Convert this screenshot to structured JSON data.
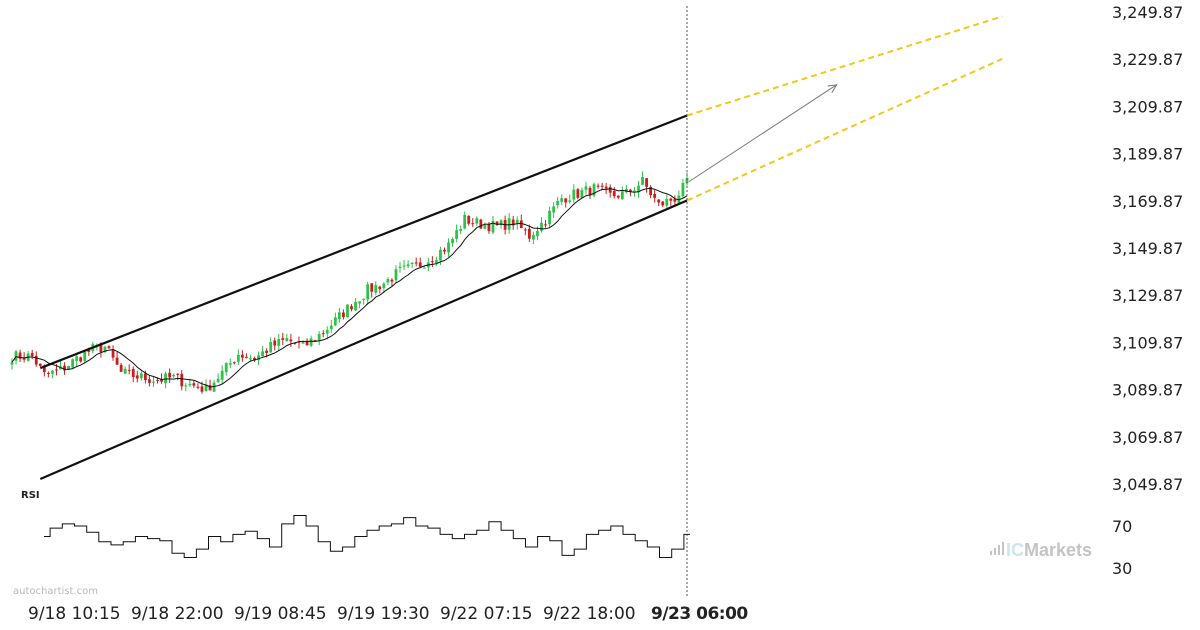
{
  "chart_data": {
    "type": "candlestick",
    "price_axis": {
      "ticks": [
        "3,249.87",
        "3,229.87",
        "3,209.87",
        "3,189.87",
        "3,169.87",
        "3,149.87",
        "3,129.87",
        "3,109.87",
        "3,089.87",
        "3,069.87",
        "3,049.87"
      ],
      "range": [
        3040,
        3252
      ]
    },
    "time_axis": {
      "ticks": [
        "9/18 10:15",
        "9/18 22:00",
        "9/19 08:45",
        "9/19 19:30",
        "9/22 07:15",
        "9/22 18:00",
        "9/23 06:00"
      ],
      "highlighted": "9/23 06:00"
    },
    "price_path": [
      [
        0,
        3104
      ],
      [
        5,
        3104
      ],
      [
        8,
        3096
      ],
      [
        12,
        3098
      ],
      [
        16,
        3103
      ],
      [
        20,
        3107
      ],
      [
        23,
        3108
      ],
      [
        27,
        3097
      ],
      [
        32,
        3095
      ],
      [
        36,
        3094
      ],
      [
        40,
        3095
      ],
      [
        44,
        3092
      ],
      [
        48,
        3090
      ],
      [
        52,
        3097
      ],
      [
        56,
        3105
      ],
      [
        60,
        3103
      ],
      [
        64,
        3108
      ],
      [
        68,
        3111
      ],
      [
        72,
        3108
      ],
      [
        76,
        3113
      ],
      [
        80,
        3119
      ],
      [
        84,
        3126
      ],
      [
        88,
        3132
      ],
      [
        92,
        3135
      ],
      [
        96,
        3140
      ],
      [
        100,
        3142
      ],
      [
        104,
        3146
      ],
      [
        108,
        3151
      ],
      [
        112,
        3162
      ],
      [
        116,
        3160
      ],
      [
        120,
        3159
      ],
      [
        124,
        3161
      ],
      [
        128,
        3155
      ],
      [
        132,
        3162
      ],
      [
        136,
        3171
      ],
      [
        140,
        3173
      ],
      [
        144,
        3175
      ],
      [
        148,
        3172
      ],
      [
        152,
        3173
      ],
      [
        156,
        3178
      ],
      [
        160,
        3168
      ],
      [
        164,
        3171
      ],
      [
        167,
        3177
      ]
    ],
    "candle_count": 168,
    "pattern_lines": {
      "upper": {
        "start": [
          7,
          3099
        ],
        "end": [
          167,
          3206
        ]
      },
      "lower": {
        "start": [
          7,
          3052
        ],
        "end": [
          167,
          3170
        ]
      },
      "projected_upper_end": [
        245,
        3248
      ],
      "projected_lower_end": [
        245,
        3230
      ],
      "arrow_start": [
        167,
        3178
      ],
      "arrow_end": [
        204,
        3219
      ]
    },
    "rsi": {
      "label": "RSI",
      "ticks": [
        "70",
        "30"
      ],
      "range": [
        20,
        90
      ],
      "values": [
        60,
        68,
        72,
        70,
        64,
        55,
        52,
        55,
        60,
        58,
        56,
        44,
        40,
        48,
        60,
        55,
        62,
        65,
        58,
        50,
        72,
        80,
        70,
        55,
        46,
        50,
        60,
        66,
        70,
        72,
        78,
        70,
        68,
        62,
        58,
        62,
        66,
        74,
        66,
        58,
        50,
        60,
        56,
        42,
        48,
        62,
        66,
        70,
        62,
        56,
        50,
        40,
        48,
        62
      ]
    },
    "colors": {
      "up": "#2ec24a",
      "down": "#c81e1e",
      "channel": "#111111",
      "projection": "#f2c81c",
      "arrow": "#777777",
      "rsi_line": "#111111"
    }
  },
  "watermark": "autochartist.com",
  "brand": {
    "part1": "IC",
    "part2": "Markets"
  }
}
